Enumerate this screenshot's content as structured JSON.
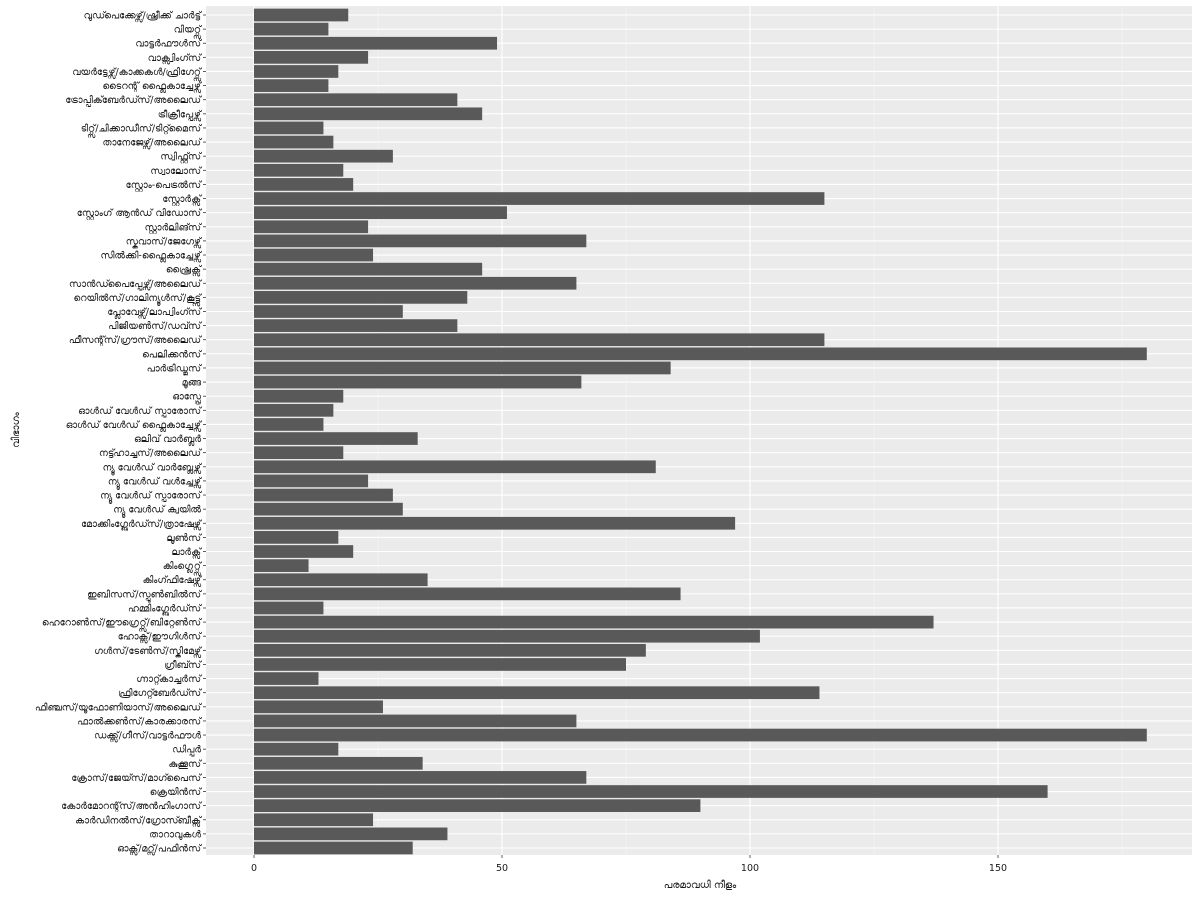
{
  "chart_data": {
    "type": "bar",
    "orientation": "horizontal",
    "xlabel": "പരമാവധി നീളം",
    "ylabel": "വിഭാഗം",
    "xlim": [
      0,
      188
    ],
    "xticks": [
      0,
      50,
      100,
      150
    ],
    "grid": true,
    "categories": [
      "ഓക്സ്/മറ്സ്/പഫിൻസ്",
      "താറാവുകൾ",
      "കാർഡിനൽസ്/ഗ്രോസ്ബീക്സ്",
      "കോർമോറന്റ്സ്/അൻഹിംഗാസ്",
      "ക്രെയിൻസ്",
      "ക്രോസ്/ജേയ്സ്/മാഗ്പൈസ്",
      "കുക്കൂസ്",
      "ഡിപ്പർ",
      "ഡക്ക്സ്/ഗീസ്/വാട്ടർഫൗൾ",
      "ഫാൽക്കൺസ്/കാരക്കാരസ്",
      "ഫിഞ്ചസ്/യൂഫോണിയാസ്/അലൈഡ്",
      "ഫ്രിഗേറ്റ്ബേർഡ്സ്",
      "ഗ്നാറ്റ്കാച്ചർസ്",
      "ഗ്രീബ്സ്",
      "ഗൾസ്/ടേൺസ്/സ്കിമേഴ്സ്",
      "ഹോക്സ്/ഈഗിൾസ്",
      "ഹെറോൺസ്/ഈഗ്രെറ്റ്സ്/ബിറ്റേൺസ്",
      "ഹമ്മിംഗ്ബേർഡ്സ്",
      "ഇബിസസ്/സ്പൂൺബിൽസ്",
      "കിംഗ്ഫിഷേഴ്സ്",
      "കിംഗ്ലെറ്റ്സ്",
      "ലാർക്സ്",
      "ലൂൺസ്",
      "മോക്കിംഗ്ബേർഡ്സ്/ത്രാഷേഴ്സ്",
      "ന്യൂ വേൾഡ് ക്വയിൽ",
      "ന്യൂ വേൾഡ് സ്പാരോസ്",
      "ന്യൂ വേൾഡ് വൾച്ചേഴ്സ്",
      "ന്യൂ വേൾഡ് വാർബ്ലേഴ്സ്",
      "നട്ട്ഹാച്ചസ്/അലൈഡ്",
      "ഒലിവ് വാർബ്ലർ",
      "ഓൾഡ് വേൾഡ് ഫ്ലൈകാച്ചേഴ്സ്",
      "ഓൾഡ് വേൾഡ് സ്പാരോസ്",
      "ഓസ്പ്രേ",
      "മൂങ്ങ",
      "പാർട്രിഡ്ജസ്",
      "പെലിക്കൻസ്",
      "ഫീസന്റ്സ്/ഗ്രൗസ്/അലൈഡ്",
      "പിജിയൺസ്/ഡവ്സ്",
      "പ്ലോവേഴ്സ്/ലാപ്വിംഗ്സ്",
      "റെയിൽസ്/ഗാലിന്യൂൾസ്/കൂട്ട്സ്",
      "സാൻഡ്പൈപ്പേഴ്സ്/അലൈഡ്",
      "ഷ്രൈക്സ്",
      "സിൽക്കി-ഫ്ലൈകാച്ചേഴ്സ്",
      "സ്കുവാസ്/ജേഗേഴ്സ്",
      "സ്റ്റാർലിങ്സ്",
      "സ്റ്റോംഗ് ആൻഡ് വിഡോസ്",
      "സ്റ്റോർക്സ്",
      "സ്റ്റോം-പെട്രൽസ്",
      "സ്വാലോസ്",
      "സ്വിഫ്റ്റ്സ്",
      "താനേജേഴ്സ്/അലൈഡ്",
      "ടിറ്റ്സ്/ചിക്കാഡീസ്/ടിറ്റ്മൈസ്",
      "ട്രീക്രീപ്പേഴ്സ്",
      "ട്രോപ്പിക്ബേർഡ്സ്/അലൈഡ്",
      "ടൈറന്റ് ഫ്ലൈകാച്ചേഴ്സ്",
      "വയർട്ടേഴ്സ്/കാക്കകൾ/ഫ്രിഗേറ്റ്സ്",
      "വാക്സ്വിംഗ്സ്",
      "വാട്ടർഫൗൾസ്",
      "വിയറ്റ്സ്",
      "വുഡ്പെക്കേഴ്സ്/ഷ്രീക്ക് ചാർട്ട്"
    ],
    "values": [
      32,
      39,
      24,
      90,
      160,
      67,
      34,
      17,
      180,
      65,
      26,
      114,
      13,
      75,
      79,
      102,
      137,
      14,
      86,
      35,
      11,
      20,
      17,
      97,
      30,
      28,
      23,
      81,
      18,
      33,
      14,
      16,
      18,
      66,
      84,
      180,
      115,
      41,
      30,
      43,
      65,
      46,
      24,
      67,
      23,
      51,
      115,
      20,
      18,
      28,
      16,
      14,
      46,
      41,
      15,
      17,
      23,
      49,
      15,
      19
    ]
  }
}
